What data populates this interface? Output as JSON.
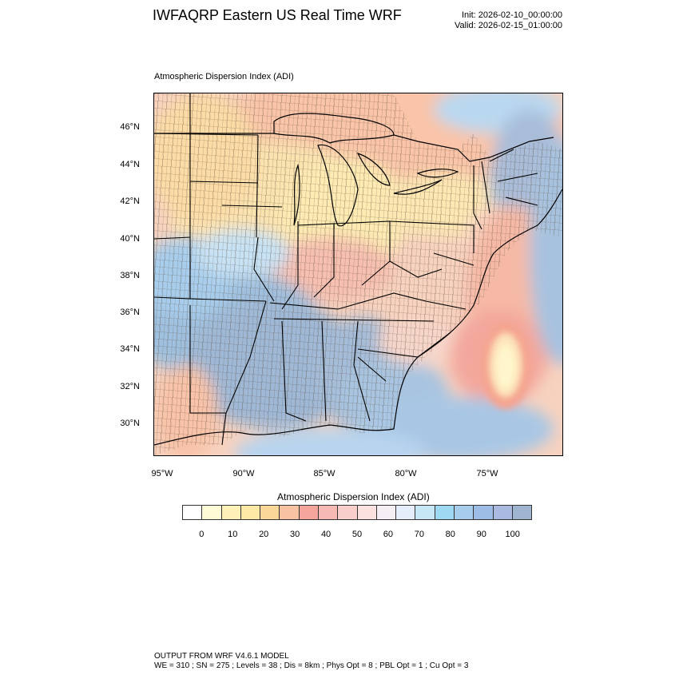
{
  "header": {
    "title": "IWFAQRP Eastern US Real Time WRF",
    "init": "Init: 2026-02-10_00:00:00",
    "valid": "Valid: 2026-02-15_01:00:00"
  },
  "panel_title": "Atmospheric Dispersion Index   (ADI)",
  "lat_labels": [
    "46°N",
    "44°N",
    "42°N",
    "40°N",
    "38°N",
    "36°N",
    "34°N",
    "32°N",
    "30°N"
  ],
  "lon_labels": [
    "95°W",
    "90°W",
    "85°W",
    "80°W",
    "75°W"
  ],
  "colorbar": {
    "title": "Atmospheric Dispersion Index  (ADI)",
    "colors": [
      "#ffffff",
      "#fffbd6",
      "#fff1b8",
      "#fde8a6",
      "#fcd79a",
      "#f9c2a3",
      "#f5a59c",
      "#f6b9b4",
      "#f8cfcb",
      "#fbe2e0",
      "#f5eef5",
      "#e7eefb",
      "#c7e6f6",
      "#9fd8f2",
      "#a8cdec",
      "#9ebde6",
      "#a9b9e0",
      "#9fb4cf"
    ],
    "ticks": [
      "0",
      "10",
      "20",
      "30",
      "40",
      "50",
      "60",
      "70",
      "80",
      "90",
      "100"
    ]
  },
  "footer": {
    "line1": "OUTPUT FROM WRF V4.6.1 MODEL",
    "line2": "WE = 310 ; SN = 275 ; Levels = 38 ; Dis = 8km ; Phys Opt = 8 ; PBL Opt = 1 ; Cu Opt = 3"
  }
}
